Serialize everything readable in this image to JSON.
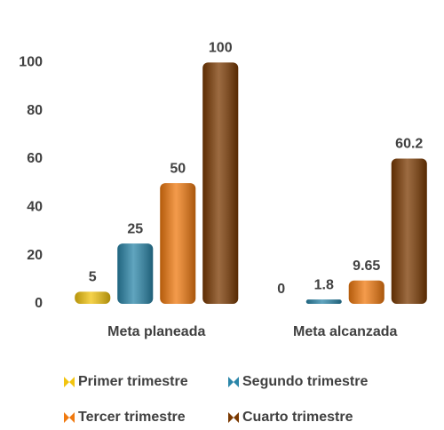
{
  "chart_data": {
    "type": "bar",
    "categories": [
      "Meta planeada",
      "Meta alcanzada"
    ],
    "series": [
      {
        "name": "Primer trimestre",
        "color": "#f2c40f",
        "values": [
          5,
          0
        ]
      },
      {
        "name": "Segundo trimestre",
        "color": "#2b86a9",
        "values": [
          25,
          1.8
        ]
      },
      {
        "name": "Tercer trimestre",
        "color": "#f07a10",
        "values": [
          50,
          9.65
        ]
      },
      {
        "name": "Cuarto trimestre",
        "color": "#7b3a02",
        "values": [
          100,
          60.2
        ]
      }
    ],
    "ylim": [
      0,
      120
    ],
    "yticks": [
      0,
      20,
      40,
      60,
      80,
      100
    ],
    "grid": false,
    "legend": "bottom"
  }
}
